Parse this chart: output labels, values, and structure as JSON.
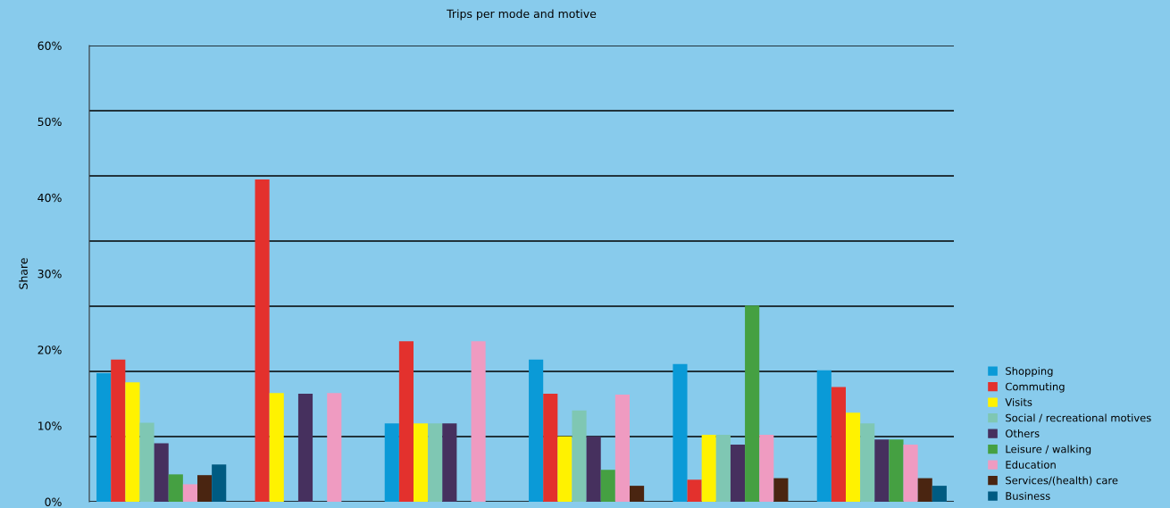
{
  "chart_data": {
    "type": "bar",
    "title": "Trips per mode and motive",
    "ylabel": "Share",
    "categories": [
      null,
      null,
      null,
      null,
      null,
      null
    ],
    "series": [
      {
        "name": "Shopping",
        "color": "#0a9ad7",
        "values": [
          16.9,
          0,
          10.3,
          18.7,
          18.1,
          17.3
        ]
      },
      {
        "name": "Commuting",
        "color": "#e3312d",
        "values": [
          18.7,
          42.4,
          21.1,
          14.2,
          2.9,
          15.1
        ]
      },
      {
        "name": "Visits",
        "color": "#fff200",
        "values": [
          15.7,
          14.3,
          10.3,
          8.6,
          8.8,
          11.7
        ]
      },
      {
        "name": "Social / recreational motives",
        "color": "#7fc7b3",
        "values": [
          10.4,
          0,
          10.3,
          12.0,
          8.8,
          10.3
        ]
      },
      {
        "name": "Others",
        "color": "#46305e",
        "values": [
          7.7,
          14.2,
          10.3,
          8.6,
          7.5,
          8.2
        ]
      },
      {
        "name": "Leisure / walking",
        "color": "#45a042",
        "values": [
          3.6,
          0,
          0,
          4.2,
          25.8,
          8.2
        ]
      },
      {
        "name": "Education",
        "color": "#ef9bc1",
        "values": [
          2.3,
          14.3,
          21.1,
          14.1,
          8.8,
          7.5
        ]
      },
      {
        "name": "Services/(health) care",
        "color": "#4a2511",
        "values": [
          3.5,
          0,
          0,
          2.1,
          3.1,
          3.1
        ]
      },
      {
        "name": "Business",
        "color": "#005b82",
        "values": [
          4.9,
          0,
          0,
          0,
          0,
          2.1
        ]
      }
    ],
    "ylim": [
      0,
      60
    ],
    "yticks": [
      {
        "value": 0,
        "label": "0%"
      },
      {
        "value": 10,
        "label": "10%"
      },
      {
        "value": 20,
        "label": "20%"
      },
      {
        "value": 30,
        "label": "30%"
      },
      {
        "value": 40,
        "label": "40%"
      },
      {
        "value": 50,
        "label": "50%"
      },
      {
        "value": 60,
        "label": "60%"
      }
    ],
    "ref_lines": [
      {
        "axis": "y",
        "value": 0,
        "color": "#000000"
      },
      {
        "axis": "y",
        "value": 8.57,
        "color": "#000000"
      },
      {
        "axis": "y",
        "value": 17.14,
        "color": "#000000"
      },
      {
        "axis": "y",
        "value": 25.71,
        "color": "#000000"
      },
      {
        "axis": "y",
        "value": 34.29,
        "color": "#000000"
      },
      {
        "axis": "y",
        "value": 42.86,
        "color": "#000000"
      },
      {
        "axis": "y",
        "value": 51.43,
        "color": "#000000"
      },
      {
        "axis": "y",
        "value": 60,
        "color": "#000000"
      }
    ],
    "grid": false,
    "legend": "bottom right"
  }
}
